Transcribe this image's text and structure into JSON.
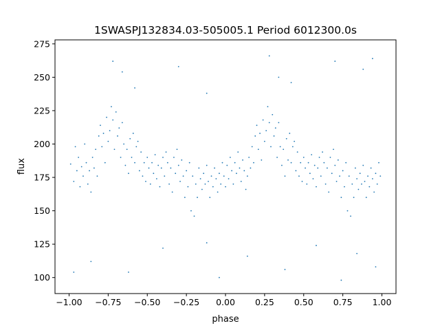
{
  "chart_data": {
    "type": "scatter",
    "title": "1SWASPJ132834.03-505005.1 Period 6012300.0s",
    "xlabel": "phase",
    "ylabel": "flux",
    "xlim": [
      -1.09,
      1.09
    ],
    "ylim": [
      88,
      278
    ],
    "x_ticks": [
      -1.0,
      -0.75,
      -0.5,
      -0.25,
      0.0,
      0.25,
      0.5,
      0.75,
      1.0
    ],
    "x_tick_labels": [
      "−1.00",
      "−0.75",
      "−0.50",
      "−0.25",
      "0.00",
      "0.25",
      "0.50",
      "0.75",
      "1.00"
    ],
    "y_ticks": [
      100,
      125,
      150,
      175,
      200,
      225,
      250,
      275
    ],
    "y_tick_labels": [
      "100",
      "125",
      "150",
      "175",
      "200",
      "225",
      "250",
      "275"
    ],
    "grid": false,
    "legend": "none",
    "marker_color": "#1f77b4",
    "series": [
      {
        "points": [
          [
            -0.99,
            185
          ],
          [
            -0.97,
            172
          ],
          [
            -0.96,
            198
          ],
          [
            -0.95,
            180
          ],
          [
            -0.94,
            190
          ],
          [
            -0.93,
            168
          ],
          [
            -0.92,
            183
          ],
          [
            -0.91,
            176
          ],
          [
            -0.9,
            200
          ],
          [
            -0.89,
            186
          ],
          [
            -0.88,
            170
          ],
          [
            -0.87,
            180
          ],
          [
            -0.86,
            164
          ],
          [
            -0.85,
            190
          ],
          [
            -0.84,
            182
          ],
          [
            -0.83,
            196
          ],
          [
            -0.82,
            176
          ],
          [
            -0.81,
            206
          ],
          [
            -0.8,
            214
          ],
          [
            -0.79,
            198
          ],
          [
            -0.78,
            208
          ],
          [
            -0.77,
            186
          ],
          [
            -0.76,
            220
          ],
          [
            -0.75,
            202
          ],
          [
            -0.74,
            210
          ],
          [
            -0.73,
            228
          ],
          [
            -0.72,
            218
          ],
          [
            -0.71,
            196
          ],
          [
            -0.7,
            224
          ],
          [
            -0.69,
            206
          ],
          [
            -0.68,
            212
          ],
          [
            -0.67,
            190
          ],
          [
            -0.66,
            216
          ],
          [
            -0.65,
            200
          ],
          [
            -0.64,
            184
          ],
          [
            -0.63,
            196
          ],
          [
            -0.62,
            178
          ],
          [
            -0.61,
            204
          ],
          [
            -0.6,
            190
          ],
          [
            -0.59,
            208
          ],
          [
            -0.58,
            186
          ],
          [
            -0.57,
            198
          ],
          [
            -0.56,
            202
          ],
          [
            -0.55,
            180
          ],
          [
            -0.54,
            194
          ],
          [
            -0.53,
            176
          ],
          [
            -0.52,
            186
          ],
          [
            -0.51,
            172
          ],
          [
            -0.5,
            190
          ],
          [
            -0.49,
            182
          ],
          [
            -0.48,
            170
          ],
          [
            -0.47,
            186
          ],
          [
            -0.46,
            178
          ],
          [
            -0.45,
            192
          ],
          [
            -0.44,
            174
          ],
          [
            -0.43,
            184
          ],
          [
            -0.42,
            168
          ],
          [
            -0.41,
            182
          ],
          [
            -0.4,
            190
          ],
          [
            -0.39,
            176
          ],
          [
            -0.38,
            194
          ],
          [
            -0.37,
            186
          ],
          [
            -0.36,
            170
          ],
          [
            -0.35,
            182
          ],
          [
            -0.34,
            164
          ],
          [
            -0.33,
            190
          ],
          [
            -0.32,
            178
          ],
          [
            -0.31,
            196
          ],
          [
            -0.3,
            184
          ],
          [
            -0.29,
            172
          ],
          [
            -0.28,
            188
          ],
          [
            -0.27,
            176
          ],
          [
            -0.26,
            160
          ],
          [
            -0.25,
            180
          ],
          [
            -0.24,
            168
          ],
          [
            -0.23,
            186
          ],
          [
            -0.22,
            150
          ],
          [
            -0.21,
            176
          ],
          [
            -0.2,
            146
          ],
          [
            -0.19,
            170
          ],
          [
            -0.18,
            160
          ],
          [
            -0.17,
            182
          ],
          [
            -0.16,
            174
          ],
          [
            -0.15,
            166
          ],
          [
            -0.14,
            178
          ],
          [
            -0.13,
            170
          ],
          [
            -0.12,
            184
          ],
          [
            -0.11,
            172
          ],
          [
            -0.1,
            160
          ],
          [
            -0.09,
            176
          ],
          [
            -0.08,
            168
          ],
          [
            -0.07,
            182
          ],
          [
            -0.06,
            174
          ],
          [
            -0.05,
            164
          ],
          [
            -0.04,
            178
          ],
          [
            -0.03,
            170
          ],
          [
            -0.02,
            186
          ],
          [
            -0.01,
            176
          ],
          [
            0.0,
            168
          ],
          [
            0.01,
            184
          ],
          [
            0.02,
            174
          ],
          [
            0.03,
            190
          ],
          [
            0.04,
            180
          ],
          [
            0.05,
            170
          ],
          [
            0.06,
            186
          ],
          [
            0.07,
            178
          ],
          [
            0.08,
            194
          ],
          [
            0.09,
            182
          ],
          [
            0.1,
            172
          ],
          [
            0.11,
            188
          ],
          [
            0.12,
            180
          ],
          [
            0.13,
            166
          ],
          [
            0.14,
            176
          ],
          [
            0.15,
            190
          ],
          [
            0.16,
            182
          ],
          [
            0.17,
            198
          ],
          [
            0.18,
            186
          ],
          [
            0.19,
            206
          ],
          [
            0.2,
            214
          ],
          [
            0.21,
            196
          ],
          [
            0.22,
            208
          ],
          [
            0.23,
            188
          ],
          [
            0.24,
            218
          ],
          [
            0.25,
            202
          ],
          [
            0.26,
            210
          ],
          [
            0.27,
            228
          ],
          [
            0.28,
            216
          ],
          [
            0.29,
            198
          ],
          [
            0.3,
            222
          ],
          [
            0.31,
            206
          ],
          [
            0.32,
            212
          ],
          [
            0.33,
            190
          ],
          [
            0.34,
            216
          ],
          [
            0.35,
            198
          ],
          [
            0.36,
            184
          ],
          [
            0.37,
            196
          ],
          [
            0.38,
            176
          ],
          [
            0.39,
            204
          ],
          [
            0.4,
            188
          ],
          [
            0.41,
            208
          ],
          [
            0.42,
            186
          ],
          [
            0.43,
            198
          ],
          [
            0.44,
            202
          ],
          [
            0.45,
            180
          ],
          [
            0.46,
            194
          ],
          [
            0.47,
            176
          ],
          [
            0.48,
            186
          ],
          [
            0.49,
            172
          ],
          [
            0.5,
            190
          ],
          [
            0.51,
            182
          ],
          [
            0.52,
            170
          ],
          [
            0.53,
            186
          ],
          [
            0.54,
            178
          ],
          [
            0.55,
            192
          ],
          [
            0.56,
            174
          ],
          [
            0.57,
            184
          ],
          [
            0.58,
            168
          ],
          [
            0.59,
            182
          ],
          [
            0.6,
            190
          ],
          [
            0.61,
            176
          ],
          [
            0.62,
            194
          ],
          [
            0.63,
            186
          ],
          [
            0.64,
            170
          ],
          [
            0.65,
            182
          ],
          [
            0.66,
            164
          ],
          [
            0.67,
            190
          ],
          [
            0.68,
            178
          ],
          [
            0.69,
            196
          ],
          [
            0.7,
            184
          ],
          [
            0.71,
            172
          ],
          [
            0.72,
            188
          ],
          [
            0.73,
            176
          ],
          [
            0.74,
            160
          ],
          [
            0.75,
            180
          ],
          [
            0.76,
            168
          ],
          [
            0.77,
            186
          ],
          [
            0.78,
            150
          ],
          [
            0.79,
            176
          ],
          [
            0.8,
            146
          ],
          [
            0.81,
            170
          ],
          [
            0.82,
            160
          ],
          [
            0.83,
            182
          ],
          [
            0.84,
            174
          ],
          [
            0.85,
            166
          ],
          [
            0.86,
            178
          ],
          [
            0.87,
            170
          ],
          [
            0.88,
            184
          ],
          [
            0.89,
            172
          ],
          [
            0.9,
            160
          ],
          [
            0.91,
            176
          ],
          [
            0.92,
            168
          ],
          [
            0.93,
            182
          ],
          [
            0.94,
            174
          ],
          [
            0.95,
            164
          ],
          [
            0.96,
            178
          ],
          [
            0.97,
            170
          ],
          [
            0.98,
            186
          ],
          [
            0.99,
            176
          ],
          [
            -0.72,
            262
          ],
          [
            -0.66,
            254
          ],
          [
            -0.58,
            242
          ],
          [
            -0.3,
            258
          ],
          [
            -0.12,
            238
          ],
          [
            0.28,
            266
          ],
          [
            0.34,
            250
          ],
          [
            0.42,
            246
          ],
          [
            0.7,
            262
          ],
          [
            0.88,
            256
          ],
          [
            0.94,
            264
          ],
          [
            -0.86,
            112
          ],
          [
            -0.62,
            104
          ],
          [
            -0.4,
            122
          ],
          [
            -0.12,
            126
          ],
          [
            -0.04,
            100
          ],
          [
            0.14,
            116
          ],
          [
            0.38,
            106
          ],
          [
            0.58,
            124
          ],
          [
            0.84,
            118
          ],
          [
            0.96,
            108
          ],
          [
            -0.97,
            104
          ],
          [
            0.74,
            98
          ]
        ]
      }
    ]
  }
}
